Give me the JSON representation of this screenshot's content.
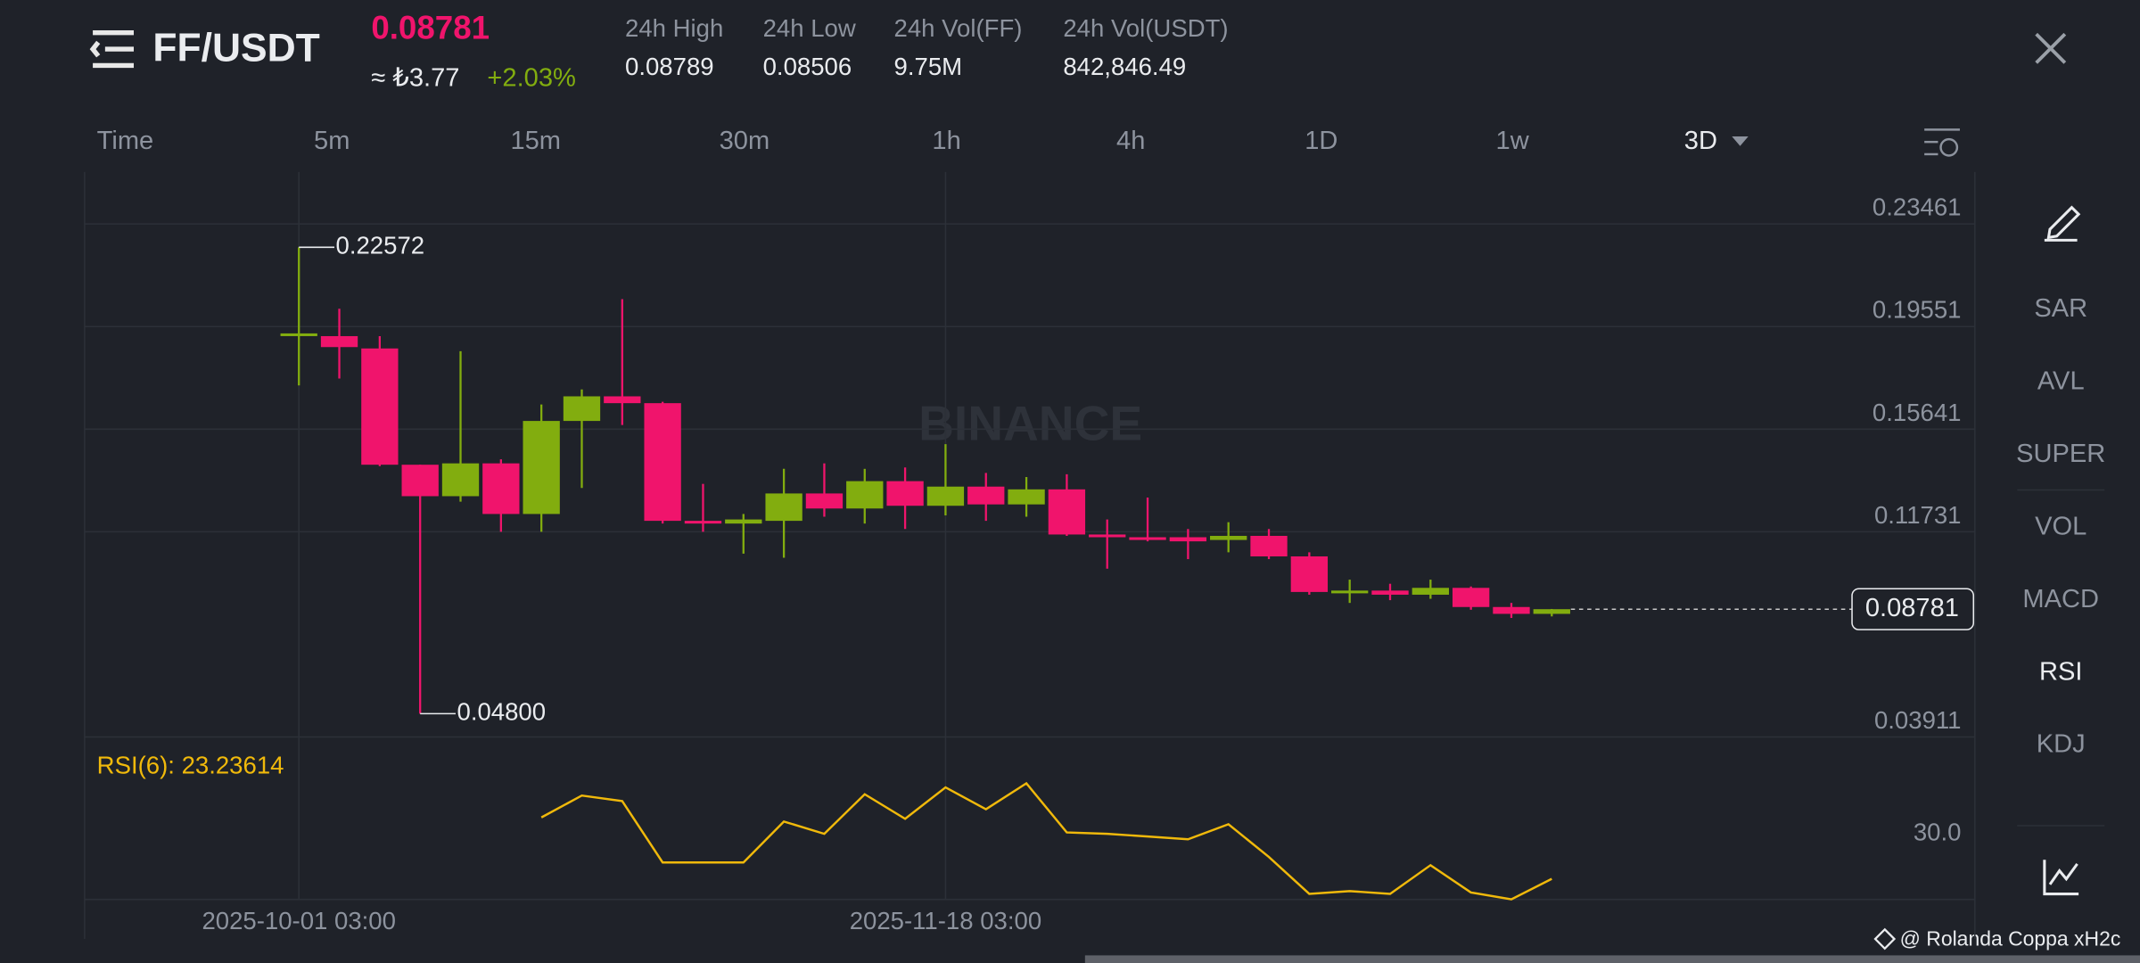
{
  "header": {
    "pair": "FF/USDT",
    "price": "0.08781",
    "fiat": "≈ ₺3.77",
    "change": "+2.03%",
    "stats": [
      {
        "label": "24h High",
        "value": "0.08789"
      },
      {
        "label": "24h Low",
        "value": "0.08506"
      },
      {
        "label": "24h Vol(FF)",
        "value": "9.75M"
      },
      {
        "label": "24h Vol(USDT)",
        "value": "842,846.49"
      }
    ]
  },
  "intervals": [
    {
      "label": "Time",
      "active": false
    },
    {
      "label": "5m",
      "active": false
    },
    {
      "label": "15m",
      "active": false
    },
    {
      "label": "30m",
      "active": false
    },
    {
      "label": "1h",
      "active": false
    },
    {
      "label": "4h",
      "active": false
    },
    {
      "label": "1D",
      "active": false
    },
    {
      "label": "1w",
      "active": false
    },
    {
      "label": "3D",
      "active": true
    }
  ],
  "indicators": [
    {
      "label": "SAR",
      "active": false
    },
    {
      "label": "AVL",
      "active": false
    },
    {
      "label": "SUPER",
      "active": false
    },
    {
      "label": "VOL",
      "active": false
    },
    {
      "label": "MACD",
      "active": false
    },
    {
      "label": "RSI",
      "active": true
    },
    {
      "label": "KDJ",
      "active": false
    }
  ],
  "watermark": "BINANCE",
  "credit": "@ Rolanda Coppa xH2c",
  "chart_data": {
    "type": "candlestick",
    "up_color": "#82ad0f",
    "down_color": "#f0146c",
    "grid": true,
    "categories": [
      "2025-10-01 03:00",
      null,
      null,
      null,
      null,
      null,
      null,
      null,
      null,
      null,
      null,
      null,
      null,
      null,
      null,
      null,
      "2025-11-18 03:00",
      null,
      null,
      null,
      null,
      null,
      null,
      null,
      null,
      null,
      null,
      null,
      null,
      null,
      null,
      null
    ],
    "open": [
      0.19238,
      0.19186,
      0.18717,
      0.14286,
      0.13087,
      0.14338,
      0.12409,
      0.15954,
      0.16892,
      0.16632,
      0.12148,
      0.12044,
      0.12148,
      0.13191,
      0.12618,
      0.1366,
      0.12722,
      0.13452,
      0.12774,
      0.13347,
      0.11627,
      0.11523,
      0.11523,
      0.11419,
      0.11575,
      0.10793,
      0.09437,
      0.0949,
      0.09333,
      0.09594,
      0.08864,
      0.08603
    ],
    "high": [
      0.22572,
      0.20229,
      0.19186,
      0.14286,
      0.18613,
      0.14494,
      0.1658,
      0.17153,
      0.20594,
      0.16684,
      0.13556,
      0.12409,
      0.14129,
      0.14338,
      0.14129,
      0.14182,
      0.15068,
      0.13973,
      0.13817,
      0.13921,
      0.122,
      0.13035,
      0.11836,
      0.12096,
      0.11836,
      0.10949,
      0.09907,
      0.0975,
      0.09907,
      0.09646,
      0.0902,
      0.08789
    ],
    "low": [
      0.17309,
      0.1757,
      0.14234,
      0.048,
      0.12878,
      0.11731,
      0.11731,
      0.134,
      0.15798,
      0.12044,
      0.11731,
      0.10897,
      0.10741,
      0.12305,
      0.12044,
      0.11836,
      0.12357,
      0.12148,
      0.12305,
      0.11575,
      0.10324,
      0.11366,
      0.10689,
      0.10949,
      0.10689,
      0.09333,
      0.0902,
      0.09125,
      0.09177,
      0.0876,
      0.08447,
      0.08506
    ],
    "close": [
      0.1929,
      0.18769,
      0.14286,
      0.13087,
      0.14338,
      0.12409,
      0.15954,
      0.16892,
      0.16632,
      0.12148,
      0.12044,
      0.122,
      0.13191,
      0.12618,
      0.1366,
      0.12722,
      0.13452,
      0.12774,
      0.13347,
      0.11627,
      0.11523,
      0.11419,
      0.11366,
      0.11575,
      0.10793,
      0.09437,
      0.0949,
      0.09333,
      0.09594,
      0.08864,
      0.08603,
      0.08781
    ],
    "high_label": "0.22572",
    "low_label": "0.04800",
    "ylim": [
      0.03911,
      0.25442
    ],
    "yticks": [
      0.23461,
      0.19551,
      0.15641,
      0.11731,
      0.03911
    ],
    "rsi": {
      "label": "RSI(6): 23.23614",
      "color": "#f0b90b",
      "values": [
        null,
        null,
        null,
        null,
        null,
        null,
        37.07,
        42.0,
        40.76,
        26.93,
        26.93,
        26.93,
        36.15,
        33.38,
        42.3,
        36.77,
        43.84,
        38.92,
        44.76,
        33.69,
        33.38,
        32.77,
        32.15,
        35.54,
        28.16,
        19.85,
        20.47,
        19.85,
        26.31,
        20.16,
        18.62,
        23.23614
      ],
      "ylim": [
        18.6,
        55.2
      ],
      "yticks": [
        {
          "value": 30,
          "label": "30.0"
        }
      ]
    }
  }
}
